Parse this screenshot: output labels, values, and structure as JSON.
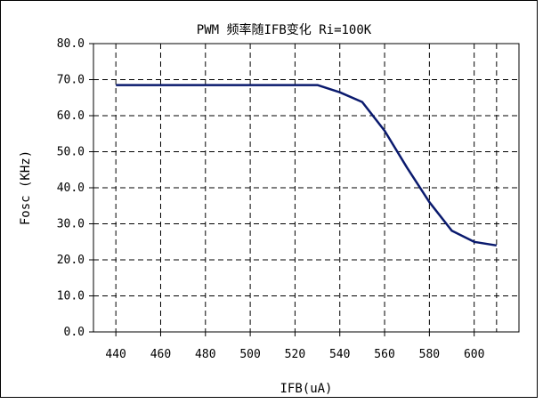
{
  "chart_data": {
    "type": "line",
    "title": "PWM 频率随IFB变化 Ri=100K",
    "xlabel": "IFB(uA)",
    "ylabel": "Fosc (KHz)",
    "xlim": [
      430,
      620
    ],
    "ylim": [
      0,
      80
    ],
    "x_ticks": [
      440,
      460,
      480,
      500,
      520,
      540,
      560,
      580,
      600
    ],
    "x_tick_labels": [
      "440",
      "460",
      "480",
      "500",
      "520",
      "540",
      "560",
      "580",
      "600"
    ],
    "y_ticks": [
      0,
      10,
      20,
      30,
      40,
      50,
      60,
      70,
      80
    ],
    "y_tick_labels": [
      "0.0",
      "10.0",
      "20.0",
      "30.0",
      "40.0",
      "50.0",
      "60.0",
      "70.0",
      "80.0"
    ],
    "grid": true,
    "grid_style": "dashed",
    "legend": "none",
    "series": [
      {
        "color": "#0a1a6e",
        "x": [
          440,
          450,
          460,
          470,
          480,
          490,
          500,
          510,
          520,
          530,
          540,
          550,
          560,
          570,
          580,
          590,
          600,
          610
        ],
        "y": [
          68.5,
          68.5,
          68.5,
          68.5,
          68.5,
          68.5,
          68.5,
          68.5,
          68.5,
          68.5,
          66.5,
          63.8,
          55.8,
          45.6,
          36.0,
          28.1,
          25.0,
          24.0
        ]
      }
    ]
  }
}
